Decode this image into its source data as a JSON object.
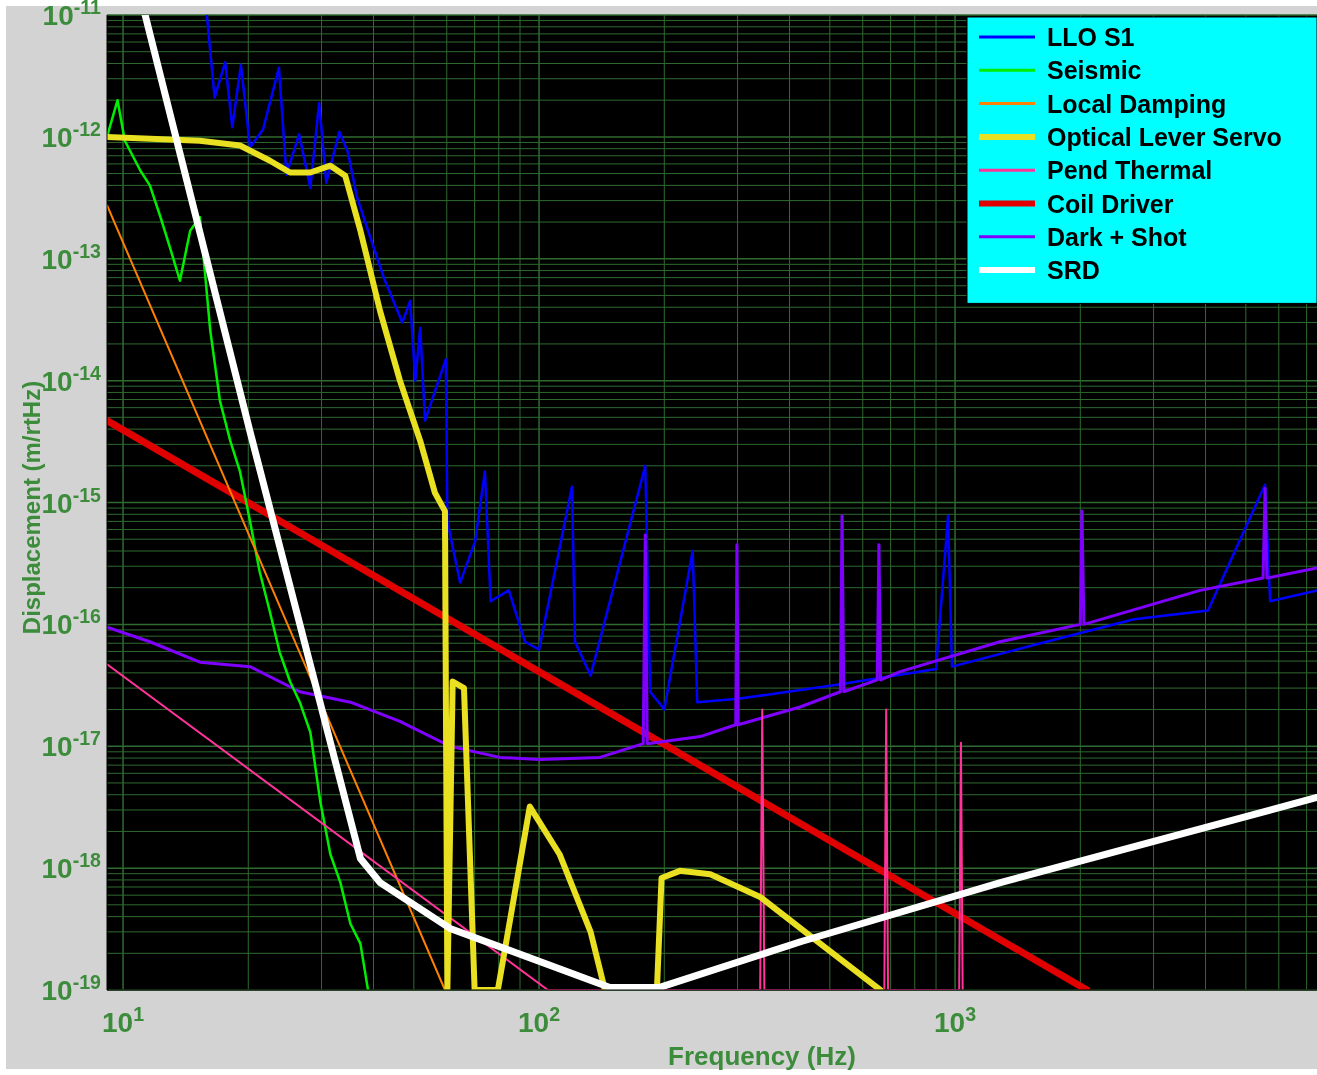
{
  "chart_data": {
    "type": "line",
    "xlabel": "Frequency (Hz)",
    "ylabel": "Displacement (m/rtHz)",
    "log": "xy",
    "grid": true,
    "legend": "top right",
    "line_style": "solid",
    "xlim": [
      9.15,
      7413
    ],
    "ylim": [
      1e-19,
      1e-11
    ],
    "xticks": [
      {
        "value": 10,
        "label": "10$^{1}$"
      },
      {
        "value": 20,
        "label": null
      },
      {
        "value": 30,
        "label": null
      },
      {
        "value": 40,
        "label": null
      },
      {
        "value": 50,
        "label": null
      },
      {
        "value": 60,
        "label": null
      },
      {
        "value": 70,
        "label": null
      },
      {
        "value": 80,
        "label": null
      },
      {
        "value": 90,
        "label": null
      },
      {
        "value": 100,
        "label": "10$^{2}$"
      },
      {
        "value": 200,
        "label": null
      },
      {
        "value": 300,
        "label": null
      },
      {
        "value": 400,
        "label": null
      },
      {
        "value": 500,
        "label": null
      },
      {
        "value": 600,
        "label": null
      },
      {
        "value": 700,
        "label": null
      },
      {
        "value": 800,
        "label": null
      },
      {
        "value": 900,
        "label": null
      },
      {
        "value": 1000,
        "label": "10$^{3}$"
      },
      {
        "value": 2000,
        "label": null
      },
      {
        "value": 3000,
        "label": null
      },
      {
        "value": 4000,
        "label": null
      },
      {
        "value": 5000,
        "label": null
      },
      {
        "value": 6000,
        "label": null
      },
      {
        "value": 7000,
        "label": null
      }
    ],
    "yticks": [
      {
        "value": 1e-19,
        "label": "10$^{-19}$"
      },
      {
        "value": 2e-19,
        "label": null
      },
      {
        "value": 3e-19,
        "label": null
      },
      {
        "value": 4e-19,
        "label": null
      },
      {
        "value": 5e-19,
        "label": null
      },
      {
        "value": 6e-19,
        "label": null
      },
      {
        "value": 7e-19,
        "label": null
      },
      {
        "value": 8e-19,
        "label": null
      },
      {
        "value": 9e-19,
        "label": null
      },
      {
        "value": 1e-18,
        "label": "10$^{-18}$"
      },
      {
        "value": 2e-18,
        "label": null
      },
      {
        "value": 3e-18,
        "label": null
      },
      {
        "value": 4e-18,
        "label": null
      },
      {
        "value": 5e-18,
        "label": null
      },
      {
        "value": 6e-18,
        "label": null
      },
      {
        "value": 7e-18,
        "label": null
      },
      {
        "value": 8e-18,
        "label": null
      },
      {
        "value": 9e-18,
        "label": null
      },
      {
        "value": 1e-17,
        "label": "10$^{-17}$"
      },
      {
        "value": 2e-17,
        "label": null
      },
      {
        "value": 3e-17,
        "label": null
      },
      {
        "value": 4e-17,
        "label": null
      },
      {
        "value": 5e-17,
        "label": null
      },
      {
        "value": 6e-17,
        "label": null
      },
      {
        "value": 7e-17,
        "label": null
      },
      {
        "value": 8e-17,
        "label": null
      },
      {
        "value": 9e-17,
        "label": null
      },
      {
        "value": 1e-16,
        "label": "10$^{-16}$"
      },
      {
        "value": 2e-16,
        "label": null
      },
      {
        "value": 3e-16,
        "label": null
      },
      {
        "value": 4e-16,
        "label": null
      },
      {
        "value": 5e-16,
        "label": null
      },
      {
        "value": 6e-16,
        "label": null
      },
      {
        "value": 7e-16,
        "label": null
      },
      {
        "value": 8e-16,
        "label": null
      },
      {
        "value": 9e-16,
        "label": null
      },
      {
        "value": 1e-15,
        "label": "10$^{-15}$"
      },
      {
        "value": 2e-15,
        "label": null
      },
      {
        "value": 3e-15,
        "label": null
      },
      {
        "value": 4e-15,
        "label": null
      },
      {
        "value": 5e-15,
        "label": null
      },
      {
        "value": 6e-15,
        "label": null
      },
      {
        "value": 7e-15,
        "label": null
      },
      {
        "value": 8e-15,
        "label": null
      },
      {
        "value": 9e-15,
        "label": null
      },
      {
        "value": 1e-14,
        "label": "10$^{-14}$"
      },
      {
        "value": 2e-14,
        "label": null
      },
      {
        "value": 3e-14,
        "label": null
      },
      {
        "value": 4e-14,
        "label": null
      },
      {
        "value": 5e-14,
        "label": null
      },
      {
        "value": 6e-14,
        "label": null
      },
      {
        "value": 7e-14,
        "label": null
      },
      {
        "value": 8e-14,
        "label": null
      },
      {
        "value": 9e-14,
        "label": null
      },
      {
        "value": 1e-13,
        "label": "10$^{-13}$"
      },
      {
        "value": 2e-13,
        "label": null
      },
      {
        "value": 3e-13,
        "label": null
      },
      {
        "value": 4e-13,
        "label": null
      },
      {
        "value": 5e-13,
        "label": null
      },
      {
        "value": 6e-13,
        "label": null
      },
      {
        "value": 7e-13,
        "label": null
      },
      {
        "value": 8e-13,
        "label": null
      },
      {
        "value": 9e-13,
        "label": null
      },
      {
        "value": 1e-12,
        "label": "10$^{-12}$"
      },
      {
        "value": 2e-12,
        "label": null
      },
      {
        "value": 3e-12,
        "label": null
      },
      {
        "value": 4e-12,
        "label": null
      },
      {
        "value": 5e-12,
        "label": null
      },
      {
        "value": 6e-12,
        "label": null
      },
      {
        "value": 7e-12,
        "label": null
      },
      {
        "value": 8e-12,
        "label": null
      },
      {
        "value": 9e-12,
        "label": null
      },
      {
        "value": 1e-11,
        "label": "10$^{-11}$"
      }
    ],
    "series": [
      {
        "name": "LLO S1",
        "color": "#0000ff",
        "x": [
          15.9,
          16.6,
          17.6,
          18.3,
          19.2,
          20.2,
          21.7,
          23.7,
          24.7,
          26.5,
          28.2,
          29.6,
          30.8,
          33.1,
          34.7,
          36.5,
          39.3,
          42.4,
          46.9,
          49,
          50.4,
          51.8,
          53.2,
          59.7,
          60.2,
          64.6,
          70.2,
          74.1,
          76.5,
          84.6,
          92.5,
          100,
          120,
          122,
          133,
          180,
          185,
          200,
          234,
          240,
          301,
          520,
          900,
          962,
          983,
          1556,
          2692,
          4055,
          5560,
          5720,
          7413
        ],
        "values": [
          1e-11,
          2.1e-12,
          4.1e-12,
          1.2e-12,
          3.9e-12,
          8.2e-13,
          1.15e-12,
          3.7e-12,
          4.9e-13,
          1.05e-12,
          3.8e-13,
          1.9e-12,
          4.2e-13,
          1.1e-12,
          7.5e-13,
          3.2e-13,
          1.5e-13,
          6.9e-14,
          3e-14,
          4.5e-14,
          1e-14,
          2.7e-14,
          4.7e-15,
          1.5e-14,
          7e-16,
          2.2e-16,
          4.8e-16,
          1.8e-15,
          1.55e-16,
          1.9e-16,
          7.2e-17,
          6.2e-17,
          1.35e-15,
          7.2e-17,
          3.8e-17,
          2e-15,
          2.8e-17,
          2e-17,
          4e-16,
          2.3e-17,
          2.45e-17,
          3.2e-17,
          4.3e-17,
          7.8e-16,
          4.5e-17,
          6.8e-17,
          1.1e-16,
          1.3e-16,
          1.4e-15,
          1.55e-16,
          1.9e-16
        ]
      },
      {
        "name": "Seismic",
        "color": "#00ee00",
        "x": [
          9.15,
          9.7,
          10.1,
          11,
          11.6,
          12.3,
          13,
          13.7,
          14.5,
          15.3,
          16.2,
          17.1,
          18.1,
          19.1,
          20.2,
          21.3,
          22.5,
          23.8,
          25.2,
          26.6,
          28.2,
          29.8,
          31.5,
          33.3,
          35.2,
          37.2,
          38.8
        ],
        "values": [
          1e-12,
          2e-12,
          9.3e-13,
          5.3e-13,
          4e-13,
          2.2e-13,
          1.2e-13,
          6.6e-14,
          1.7e-13,
          2.2e-13,
          2.6e-14,
          6.8e-15,
          3.2e-15,
          1.8e-15,
          7e-16,
          2.7e-16,
          1.3e-16,
          5.9e-17,
          3.4e-17,
          2.3e-17,
          1.3e-17,
          3.5e-18,
          1.3e-18,
          7.6e-19,
          3.5e-19,
          2.4e-19,
          1e-19
        ]
      },
      {
        "name": "Local Damping",
        "color": "#ff8000",
        "x": [
          9.15,
          59.4
        ],
        "values": [
          2.75e-13,
          1e-19
        ]
      },
      {
        "name": "Optical Lever Servo",
        "color": "#e8e020",
        "x": [
          9.15,
          15.3,
          19.1,
          22.5,
          25.2,
          28.2,
          31.5,
          34.2,
          37.2,
          41.5,
          46.3,
          51.8,
          56.2,
          59.4,
          60.2,
          62,
          66,
          70,
          79.6,
          95,
          112,
          133,
          144,
          192,
          197,
          218,
          258,
          340,
          474,
          661
        ],
        "values": [
          1e-12,
          9.3e-13,
          8.5e-13,
          6.4e-13,
          5.1e-13,
          5.1e-13,
          5.8e-13,
          4.8e-13,
          1.7e-13,
          3.7e-14,
          1e-14,
          3.2e-15,
          1.2e-15,
          8.5e-16,
          1e-19,
          3.4e-17,
          3e-17,
          1e-19,
          1e-19,
          3.2e-18,
          1.3e-18,
          3e-19,
          1e-19,
          1e-19,
          8.3e-19,
          9.5e-19,
          8.9e-19,
          5.8e-19,
          2.4e-19,
          1e-19
        ]
      },
      {
        "name": "Pend Thermal",
        "color": "#ff3399",
        "x": [
          9.15,
          105,
          340,
          344,
          348,
          676,
          683,
          690,
          1023,
          1033,
          1043
        ],
        "values": [
          4.7e-17,
          1e-19,
          1e-19,
          2e-17,
          1e-19,
          1e-19,
          2e-17,
          1e-19,
          1e-19,
          1.07e-17,
          1e-19
        ]
      },
      {
        "name": "Coil Driver",
        "color": "#e00000",
        "x": [
          9.15,
          2075
        ],
        "values": [
          4.7e-15,
          1e-19
        ]
      },
      {
        "name": "Dark + Shot",
        "color": "#8000ff",
        "x": [
          9.15,
          11.6,
          15.3,
          20.2,
          26.6,
          35.2,
          46.3,
          61.1,
          80.5,
          100,
          140,
          178,
          180,
          182,
          244,
          297,
          299,
          301,
          424,
          530,
          535,
          540,
          650,
          656,
          662,
          738,
          1282,
          2000,
          2018,
          2040,
          3882,
          5500,
          5560,
          5620,
          7413
        ],
        "values": [
          9.5e-17,
          7.2e-17,
          4.9e-17,
          4.5e-17,
          2.8e-17,
          2.3e-17,
          1.6e-17,
          1e-17,
          8.1e-18,
          7.8e-18,
          8.1e-18,
          1.05e-17,
          5.4e-16,
          1.05e-17,
          1.2e-17,
          1.5e-17,
          4.5e-16,
          1.5e-17,
          2.1e-17,
          2.8e-17,
          7.8e-16,
          2.8e-17,
          3.5e-17,
          4.5e-16,
          3.5e-17,
          4.1e-17,
          7.2e-17,
          1e-16,
          8.5e-16,
          1e-16,
          1.9e-16,
          2.4e-16,
          1.3e-15,
          2.4e-16,
          2.9e-16
        ]
      },
      {
        "name": "SRD",
        "color": "#ffffff",
        "x": [
          11.3,
          20.2,
          37.2,
          41.5,
          61.1,
          148,
          195,
          427,
          1285,
          7413
        ],
        "values": [
          1e-11,
          3.8e-15,
          1.2e-18,
          7.6e-19,
          3.2e-19,
          1.05e-19,
          1.05e-19,
          2.5e-19,
          7.6e-19,
          3.8e-18
        ]
      }
    ]
  }
}
